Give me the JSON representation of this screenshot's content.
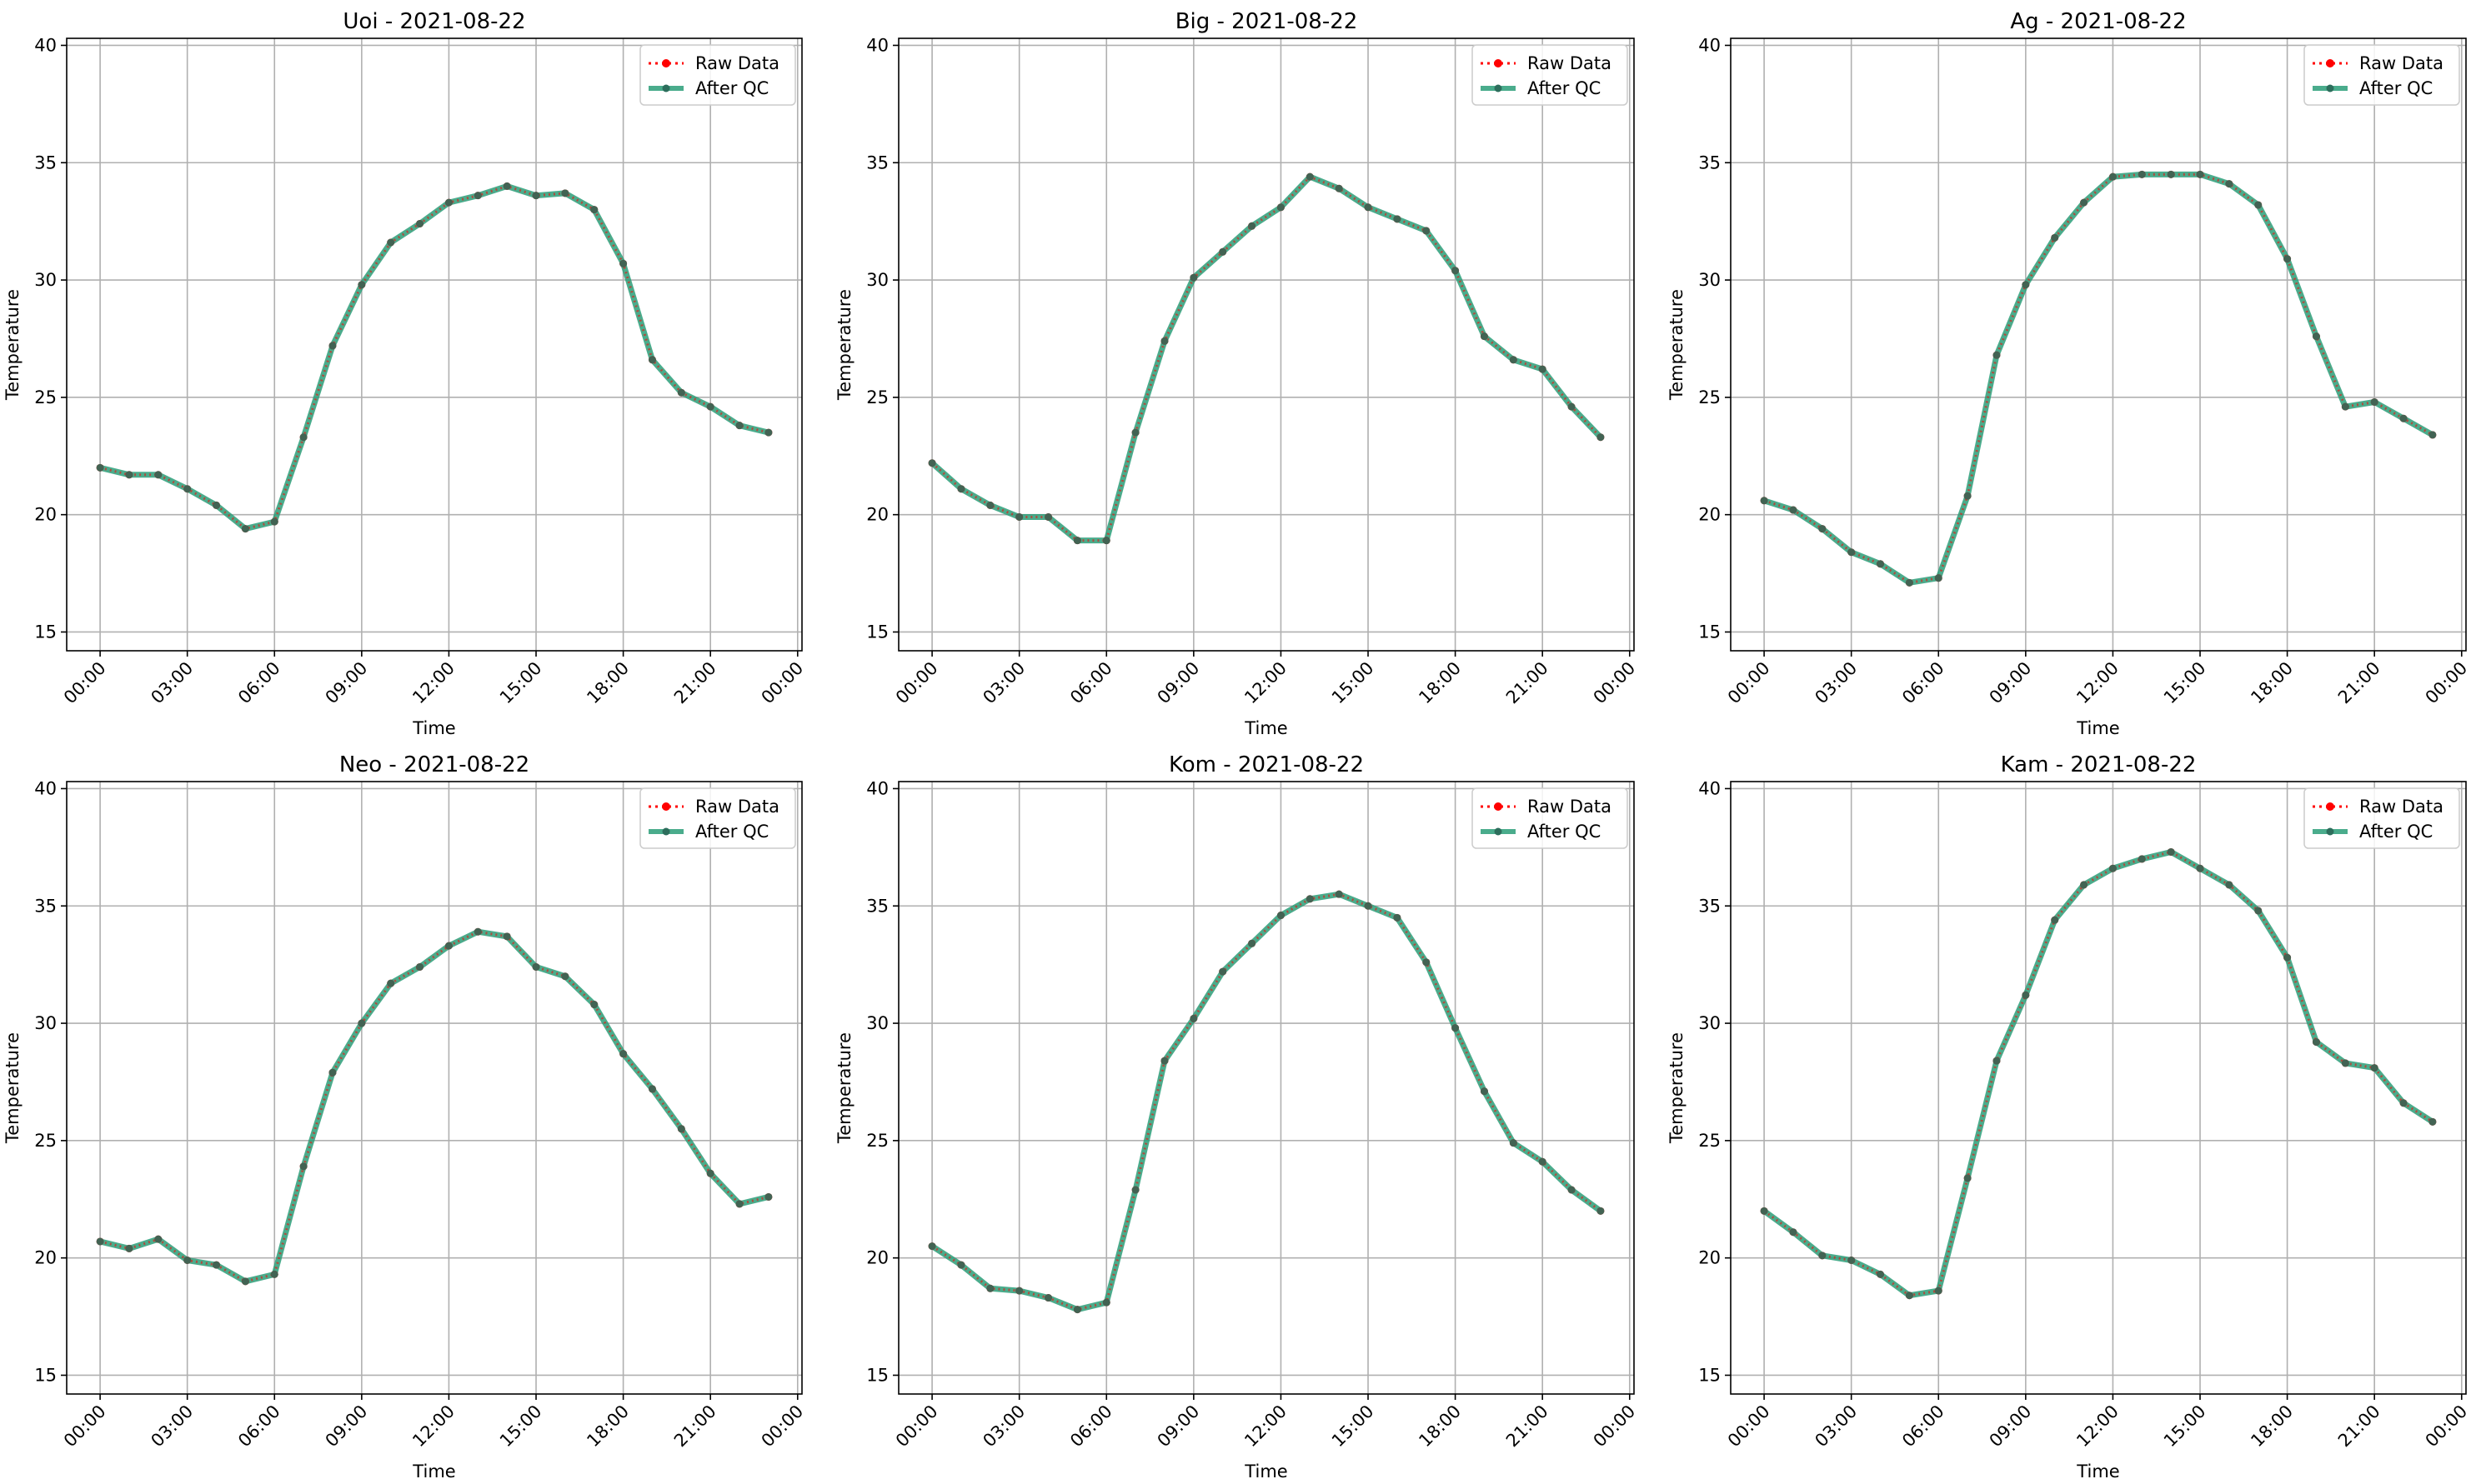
{
  "chart_data": [
    {
      "type": "line",
      "title": "Uoi - 2021-08-22",
      "xlabel": "Time",
      "ylabel": "Temperature",
      "ylim": [
        14.2,
        40.3
      ],
      "yticks": [
        15,
        20,
        25,
        30,
        35,
        40
      ],
      "xticks": [
        "00:00",
        "03:00",
        "06:00",
        "09:00",
        "12:00",
        "15:00",
        "18:00",
        "21:00",
        "00:00"
      ],
      "x": [
        "00:00",
        "01:00",
        "02:00",
        "03:00",
        "04:00",
        "05:00",
        "06:00",
        "07:00",
        "08:00",
        "09:00",
        "10:00",
        "11:00",
        "12:00",
        "13:00",
        "14:00",
        "15:00",
        "16:00",
        "17:00",
        "18:00",
        "19:00",
        "20:00",
        "21:00",
        "22:00",
        "23:00"
      ],
      "grid": true,
      "legend": "upper-right",
      "series": [
        {
          "name": "Raw Data",
          "color": "#ff0000",
          "style": "dotted",
          "values": [
            22.0,
            21.7,
            21.7,
            21.1,
            20.4,
            19.4,
            19.7,
            23.3,
            27.2,
            29.8,
            31.6,
            32.4,
            33.3,
            33.6,
            34.0,
            33.6,
            33.7,
            33.0,
            30.7,
            26.6,
            25.2,
            24.6,
            23.8,
            23.5
          ]
        },
        {
          "name": "After QC",
          "color": "#2a9d78",
          "style": "solid",
          "values": [
            22.0,
            21.7,
            21.7,
            21.1,
            20.4,
            19.4,
            19.7,
            23.3,
            27.2,
            29.8,
            31.6,
            32.4,
            33.3,
            33.6,
            34.0,
            33.6,
            33.7,
            33.0,
            30.7,
            26.6,
            25.2,
            24.6,
            23.8,
            23.5
          ]
        }
      ]
    },
    {
      "type": "line",
      "title": "Big - 2021-08-22",
      "xlabel": "Time",
      "ylabel": "Temperature",
      "ylim": [
        14.2,
        40.3
      ],
      "yticks": [
        15,
        20,
        25,
        30,
        35,
        40
      ],
      "xticks": [
        "00:00",
        "03:00",
        "06:00",
        "09:00",
        "12:00",
        "15:00",
        "18:00",
        "21:00",
        "00:00"
      ],
      "x": [
        "00:00",
        "01:00",
        "02:00",
        "03:00",
        "04:00",
        "05:00",
        "06:00",
        "07:00",
        "08:00",
        "09:00",
        "10:00",
        "11:00",
        "12:00",
        "13:00",
        "14:00",
        "15:00",
        "16:00",
        "17:00",
        "18:00",
        "19:00",
        "20:00",
        "21:00",
        "22:00",
        "23:00"
      ],
      "grid": true,
      "legend": "upper-right",
      "series": [
        {
          "name": "Raw Data",
          "color": "#ff0000",
          "style": "dotted",
          "values": [
            22.2,
            21.1,
            20.4,
            19.9,
            19.9,
            18.9,
            18.9,
            23.5,
            27.4,
            30.1,
            31.2,
            32.3,
            33.1,
            34.4,
            33.9,
            33.1,
            32.6,
            32.1,
            30.4,
            27.6,
            26.6,
            26.2,
            24.6,
            23.3
          ]
        },
        {
          "name": "After QC",
          "color": "#2a9d78",
          "style": "solid",
          "values": [
            22.2,
            21.1,
            20.4,
            19.9,
            19.9,
            18.9,
            18.9,
            23.5,
            27.4,
            30.1,
            31.2,
            32.3,
            33.1,
            34.4,
            33.9,
            33.1,
            32.6,
            32.1,
            30.4,
            27.6,
            26.6,
            26.2,
            24.6,
            23.3
          ]
        }
      ]
    },
    {
      "type": "line",
      "title": "Ag - 2021-08-22",
      "xlabel": "Time",
      "ylabel": "Temperature",
      "ylim": [
        14.2,
        40.3
      ],
      "yticks": [
        15,
        20,
        25,
        30,
        35,
        40
      ],
      "xticks": [
        "00:00",
        "03:00",
        "06:00",
        "09:00",
        "12:00",
        "15:00",
        "18:00",
        "21:00",
        "00:00"
      ],
      "x": [
        "00:00",
        "01:00",
        "02:00",
        "03:00",
        "04:00",
        "05:00",
        "06:00",
        "07:00",
        "08:00",
        "09:00",
        "10:00",
        "11:00",
        "12:00",
        "13:00",
        "14:00",
        "15:00",
        "16:00",
        "17:00",
        "18:00",
        "19:00",
        "20:00",
        "21:00",
        "22:00",
        "23:00"
      ],
      "grid": true,
      "legend": "upper-right",
      "series": [
        {
          "name": "Raw Data",
          "color": "#ff0000",
          "style": "dotted",
          "values": [
            20.6,
            20.2,
            19.4,
            18.4,
            17.9,
            17.1,
            17.3,
            20.8,
            26.8,
            29.8,
            31.8,
            33.3,
            34.4,
            34.5,
            34.5,
            34.5,
            34.1,
            33.2,
            30.9,
            27.6,
            24.6,
            24.8,
            24.1,
            23.4
          ]
        },
        {
          "name": "After QC",
          "color": "#2a9d78",
          "style": "solid",
          "values": [
            20.6,
            20.2,
            19.4,
            18.4,
            17.9,
            17.1,
            17.3,
            20.8,
            26.8,
            29.8,
            31.8,
            33.3,
            34.4,
            34.5,
            34.5,
            34.5,
            34.1,
            33.2,
            30.9,
            27.6,
            24.6,
            24.8,
            24.1,
            23.4
          ]
        }
      ]
    },
    {
      "type": "line",
      "title": "Neo - 2021-08-22",
      "xlabel": "Time",
      "ylabel": "Temperature",
      "ylim": [
        14.2,
        40.3
      ],
      "yticks": [
        15,
        20,
        25,
        30,
        35,
        40
      ],
      "xticks": [
        "00:00",
        "03:00",
        "06:00",
        "09:00",
        "12:00",
        "15:00",
        "18:00",
        "21:00",
        "00:00"
      ],
      "x": [
        "00:00",
        "01:00",
        "02:00",
        "03:00",
        "04:00",
        "05:00",
        "06:00",
        "07:00",
        "08:00",
        "09:00",
        "10:00",
        "11:00",
        "12:00",
        "13:00",
        "14:00",
        "15:00",
        "16:00",
        "17:00",
        "18:00",
        "19:00",
        "20:00",
        "21:00",
        "22:00",
        "23:00"
      ],
      "grid": true,
      "legend": "upper-right",
      "series": [
        {
          "name": "Raw Data",
          "color": "#ff0000",
          "style": "dotted",
          "values": [
            20.7,
            20.4,
            20.8,
            19.9,
            19.7,
            19.0,
            19.3,
            23.9,
            27.9,
            30.0,
            31.7,
            32.4,
            33.3,
            33.9,
            33.7,
            32.4,
            32.0,
            30.8,
            28.7,
            27.2,
            25.5,
            23.6,
            22.3,
            22.6
          ]
        },
        {
          "name": "After QC",
          "color": "#2a9d78",
          "style": "solid",
          "values": [
            20.7,
            20.4,
            20.8,
            19.9,
            19.7,
            19.0,
            19.3,
            23.9,
            27.9,
            30.0,
            31.7,
            32.4,
            33.3,
            33.9,
            33.7,
            32.4,
            32.0,
            30.8,
            28.7,
            27.2,
            25.5,
            23.6,
            22.3,
            22.6
          ]
        }
      ]
    },
    {
      "type": "line",
      "title": "Kom - 2021-08-22",
      "xlabel": "Time",
      "ylabel": "Temperature",
      "ylim": [
        14.2,
        40.3
      ],
      "yticks": [
        15,
        20,
        25,
        30,
        35,
        40
      ],
      "xticks": [
        "00:00",
        "03:00",
        "06:00",
        "09:00",
        "12:00",
        "15:00",
        "18:00",
        "21:00",
        "00:00"
      ],
      "x": [
        "00:00",
        "01:00",
        "02:00",
        "03:00",
        "04:00",
        "05:00",
        "06:00",
        "07:00",
        "08:00",
        "09:00",
        "10:00",
        "11:00",
        "12:00",
        "13:00",
        "14:00",
        "15:00",
        "16:00",
        "17:00",
        "18:00",
        "19:00",
        "20:00",
        "21:00",
        "22:00",
        "23:00"
      ],
      "grid": true,
      "legend": "upper-right",
      "series": [
        {
          "name": "Raw Data",
          "color": "#ff0000",
          "style": "dotted",
          "values": [
            20.5,
            19.7,
            18.7,
            18.6,
            18.3,
            17.8,
            18.1,
            22.9,
            28.4,
            30.2,
            32.2,
            33.4,
            34.6,
            35.3,
            35.5,
            35.0,
            34.5,
            32.6,
            29.8,
            27.1,
            24.9,
            24.1,
            22.9,
            22.0
          ]
        },
        {
          "name": "After QC",
          "color": "#2a9d78",
          "style": "solid",
          "values": [
            20.5,
            19.7,
            18.7,
            18.6,
            18.3,
            17.8,
            18.1,
            22.9,
            28.4,
            30.2,
            32.2,
            33.4,
            34.6,
            35.3,
            35.5,
            35.0,
            34.5,
            32.6,
            29.8,
            27.1,
            24.9,
            24.1,
            22.9,
            22.0
          ]
        }
      ]
    },
    {
      "type": "line",
      "title": "Kam - 2021-08-22",
      "xlabel": "Time",
      "ylabel": "Temperature",
      "ylim": [
        14.2,
        40.3
      ],
      "yticks": [
        15,
        20,
        25,
        30,
        35,
        40
      ],
      "xticks": [
        "00:00",
        "03:00",
        "06:00",
        "09:00",
        "12:00",
        "15:00",
        "18:00",
        "21:00",
        "00:00"
      ],
      "x": [
        "00:00",
        "01:00",
        "02:00",
        "03:00",
        "04:00",
        "05:00",
        "06:00",
        "07:00",
        "08:00",
        "09:00",
        "10:00",
        "11:00",
        "12:00",
        "13:00",
        "14:00",
        "15:00",
        "16:00",
        "17:00",
        "18:00",
        "19:00",
        "20:00",
        "21:00",
        "22:00",
        "23:00"
      ],
      "grid": true,
      "legend": "upper-right",
      "series": [
        {
          "name": "Raw Data",
          "color": "#ff0000",
          "style": "dotted",
          "values": [
            22.0,
            21.1,
            20.1,
            19.9,
            19.3,
            18.4,
            18.6,
            23.4,
            28.4,
            31.2,
            34.4,
            35.9,
            36.6,
            37.0,
            37.3,
            36.6,
            35.9,
            34.8,
            32.8,
            29.2,
            28.3,
            28.1,
            26.6,
            25.8
          ]
        },
        {
          "name": "After QC",
          "color": "#2a9d78",
          "style": "solid",
          "values": [
            22.0,
            21.1,
            20.1,
            19.9,
            19.3,
            18.4,
            18.6,
            23.4,
            28.4,
            31.2,
            34.4,
            35.9,
            36.6,
            37.0,
            37.3,
            36.6,
            35.9,
            34.8,
            32.8,
            29.2,
            28.3,
            28.1,
            26.6,
            25.8
          ]
        }
      ]
    }
  ]
}
